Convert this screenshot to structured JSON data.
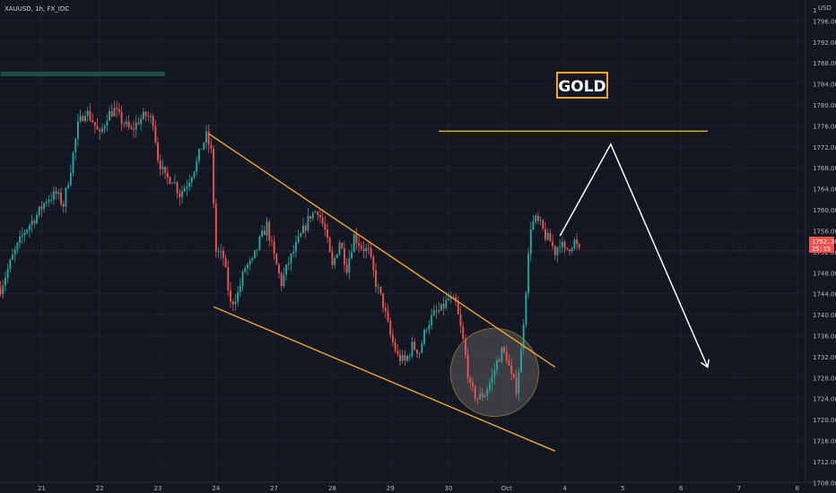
{
  "header": {
    "symbol": "XAUUSD, 1h, FX_IDC"
  },
  "price_axis": {
    "currency": "USD"
  },
  "annotation": {
    "title": "GOLD"
  },
  "last_price": {
    "value": "1752.26",
    "countdown": "25:15"
  },
  "colors": {
    "background": "#131722",
    "up": "#26a69a",
    "down": "#ef5350",
    "trendline": "#f5a623",
    "projection": "#ffffff",
    "resistance_zone": "#1f4f4a",
    "price_line": "#ef5350"
  },
  "chart_data": {
    "type": "candlestick",
    "title": "GOLD",
    "ylim": [
      1706,
      1800
    ],
    "y_ticks": [
      1708,
      1712,
      1716,
      1720,
      1724,
      1728,
      1732,
      1736,
      1740,
      1744,
      1748,
      1752,
      1756,
      1760,
      1764,
      1768,
      1772,
      1776,
      1780,
      1784,
      1788,
      1792,
      1796
    ],
    "y_tick_labels": [
      "1708.00",
      "1712.00",
      "1716.00",
      "1720.00",
      "1724.00",
      "1728.00",
      "1732.00",
      "1736.00",
      "1740.00",
      "1744.00",
      "1748.00",
      "1752.00",
      "1756.00",
      "1760.00",
      "1764.00",
      "1768.00",
      "1772.00",
      "1776.00",
      "1780.00",
      "1784.00",
      "1788.00",
      "1792.00",
      "1796.00"
    ],
    "top_tick_label": "1",
    "x_ticks": [
      "21",
      "22",
      "23",
      "24",
      "27",
      "28",
      "29",
      "30",
      "Oct",
      "4",
      "5",
      "6",
      "7",
      "8"
    ],
    "x_tick_positions": [
      0,
      24,
      48,
      72,
      96,
      120,
      144,
      168,
      192,
      216,
      240,
      264,
      288,
      312
    ],
    "x_range": [
      -17.2,
      328
    ],
    "price_path": [
      [
        -17,
        1745
      ],
      [
        -12,
        1751
      ],
      [
        -7,
        1756
      ],
      [
        -2,
        1759
      ],
      [
        2,
        1762
      ],
      [
        6,
        1763
      ],
      [
        9,
        1761
      ],
      [
        12,
        1768
      ],
      [
        15,
        1776
      ],
      [
        18,
        1779
      ],
      [
        21,
        1777
      ],
      [
        24,
        1774
      ],
      [
        27,
        1778
      ],
      [
        30,
        1779
      ],
      [
        33,
        1777
      ],
      [
        37,
        1775
      ],
      [
        40,
        1777
      ],
      [
        43,
        1778
      ],
      [
        46,
        1777
      ],
      [
        48,
        1770
      ],
      [
        51,
        1766
      ],
      [
        54,
        1766
      ],
      [
        57,
        1763
      ],
      [
        60,
        1765
      ],
      [
        62,
        1767
      ],
      [
        64,
        1769
      ],
      [
        66,
        1772
      ],
      [
        68,
        1774
      ],
      [
        70,
        1771
      ],
      [
        72,
        1752
      ],
      [
        75,
        1751
      ],
      [
        78,
        1742
      ],
      [
        81,
        1744
      ],
      [
        84,
        1749
      ],
      [
        87,
        1750
      ],
      [
        90,
        1754
      ],
      [
        93,
        1757
      ],
      [
        96,
        1751
      ],
      [
        99,
        1746
      ],
      [
        102,
        1750
      ],
      [
        105,
        1753
      ],
      [
        108,
        1756
      ],
      [
        111,
        1759
      ],
      [
        114,
        1760
      ],
      [
        117,
        1756
      ],
      [
        120,
        1749
      ],
      [
        123,
        1754
      ],
      [
        126,
        1749
      ],
      [
        129,
        1755
      ],
      [
        132,
        1753
      ],
      [
        135,
        1752
      ],
      [
        138,
        1746
      ],
      [
        141,
        1742
      ],
      [
        144,
        1736
      ],
      [
        147,
        1732
      ],
      [
        150,
        1731
      ],
      [
        153,
        1734
      ],
      [
        156,
        1733
      ],
      [
        159,
        1738
      ],
      [
        162,
        1740
      ],
      [
        165,
        1741
      ],
      [
        168,
        1743
      ],
      [
        171,
        1742
      ],
      [
        174,
        1735
      ],
      [
        177,
        1726
      ],
      [
        180,
        1724
      ],
      [
        183,
        1725
      ],
      [
        186,
        1728
      ],
      [
        188,
        1731
      ],
      [
        190,
        1733
      ],
      [
        192,
        1732
      ],
      [
        194,
        1728
      ],
      [
        196,
        1726
      ],
      [
        198,
        1733
      ],
      [
        200,
        1745
      ],
      [
        202,
        1757
      ],
      [
        204,
        1758
      ],
      [
        206,
        1757
      ],
      [
        208,
        1755
      ],
      [
        210,
        1754
      ],
      [
        212,
        1752
      ],
      [
        214,
        1754
      ],
      [
        216,
        1752
      ],
      [
        218,
        1753
      ],
      [
        220,
        1754
      ],
      [
        222,
        1752
      ]
    ],
    "annotations": {
      "channel_upper": [
        [
          69,
          1774.5
        ],
        [
          212,
          1730
        ]
      ],
      "channel_lower": [
        [
          71,
          1741.5
        ],
        [
          212,
          1714
        ]
      ],
      "target_line": [
        [
          164,
          1775
        ],
        [
          275,
          1775
        ]
      ],
      "projection": [
        [
          214,
          1755
        ],
        [
          235,
          1772.5
        ],
        [
          275,
          1730
        ]
      ],
      "resistance_zone": [
        [
          -17,
          1786
        ],
        [
          51,
          1786
        ]
      ],
      "breakout_circle": {
        "center": [
          187,
          1729
        ],
        "radius_price": 8.4
      },
      "last_price_line": 1752.26
    }
  }
}
